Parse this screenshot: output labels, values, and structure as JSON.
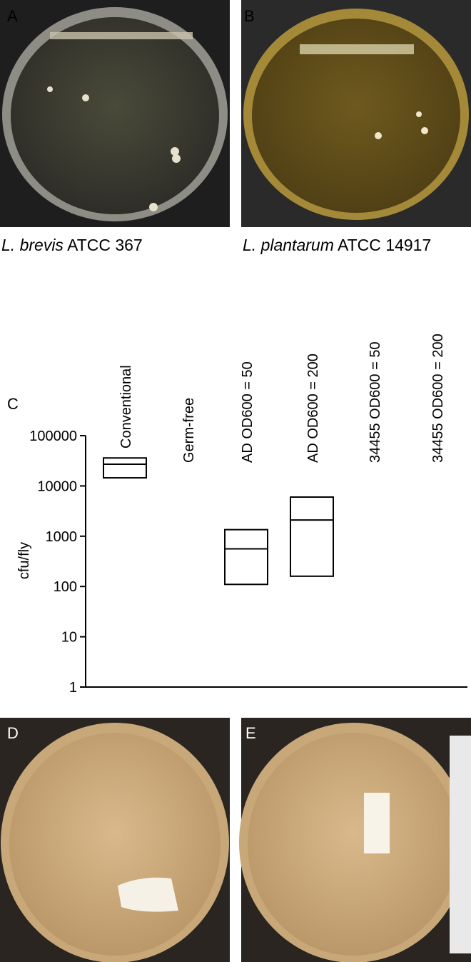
{
  "panels": [
    "A",
    "B",
    "C",
    "D",
    "E"
  ],
  "captions": [
    {
      "species": "L. brevis",
      "strain": "ATCC 367"
    },
    {
      "species": "L. plantarum",
      "strain": "ATCC 14917"
    }
  ],
  "chart_data": {
    "type": "box",
    "categories": [
      "Conventional",
      "Germ-free",
      "AD OD600 = 50",
      "AD OD600 = 200",
      "34455 OD600 = 50",
      "34455 OD600 = 200"
    ],
    "low": [
      14500,
      1,
      110,
      160,
      1,
      1
    ],
    "median": [
      27000,
      1,
      560,
      2100,
      1,
      1
    ],
    "high": [
      36000,
      1,
      1350,
      6000,
      1,
      1
    ],
    "color": "#000000",
    "ylabel": "cfu/fly",
    "ylim": [
      1,
      100000
    ],
    "yticks": [
      1,
      10,
      100,
      1000,
      10000,
      100000
    ],
    "log": true
  }
}
